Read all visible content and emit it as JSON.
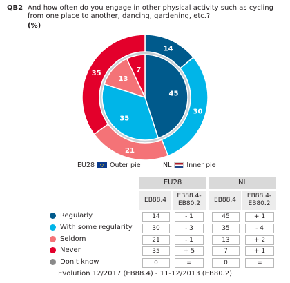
{
  "question": {
    "code": "QB2",
    "text": "And how often do you engage in other physical activity such as cycling from one place to another, dancing, gardening, etc.?",
    "unit": "(%)"
  },
  "pie_legend": {
    "eu_label": "EU28",
    "eu_desc": "Outer pie",
    "nl_label": "NL",
    "nl_desc": "Inner pie"
  },
  "colors": {
    "regularly": "#005a8c",
    "some_regularity": "#00b5e8",
    "seldom": "#f47377",
    "never": "#e3002b",
    "dont_know": "#8a8a8a"
  },
  "table": {
    "group_headers": [
      "EU28",
      "NL"
    ],
    "col_headers": [
      "EB88.4",
      "EB88.4-\nEB80.2",
      "EB88.4",
      "EB88.4-\nEB80.2"
    ],
    "rows": [
      {
        "label": "Regularly",
        "cells": [
          "14",
          "- 1",
          "45",
          "+ 1"
        ]
      },
      {
        "label": "With some regularity",
        "cells": [
          "30",
          "- 3",
          "35",
          "- 4"
        ]
      },
      {
        "label": "Seldom",
        "cells": [
          "21",
          "- 1",
          "13",
          "+ 2"
        ]
      },
      {
        "label": "Never",
        "cells": [
          "35",
          "+ 5",
          "7",
          "+ 1"
        ]
      },
      {
        "label": "Don't know",
        "cells": [
          "0",
          "=",
          "0",
          "="
        ]
      }
    ]
  },
  "footer": "Evolution 12/2017 (EB88.4) - 11-12/2013 (EB80.2)",
  "chart_data": {
    "type": "pie",
    "categories": [
      "Regularly",
      "With some regularity",
      "Seldom",
      "Never",
      "Don't know"
    ],
    "series": [
      {
        "name": "EU28",
        "ring": "outer",
        "values": [
          14,
          30,
          21,
          35,
          0
        ]
      },
      {
        "name": "NL",
        "ring": "inner",
        "values": [
          45,
          35,
          13,
          7,
          0
        ]
      }
    ]
  }
}
